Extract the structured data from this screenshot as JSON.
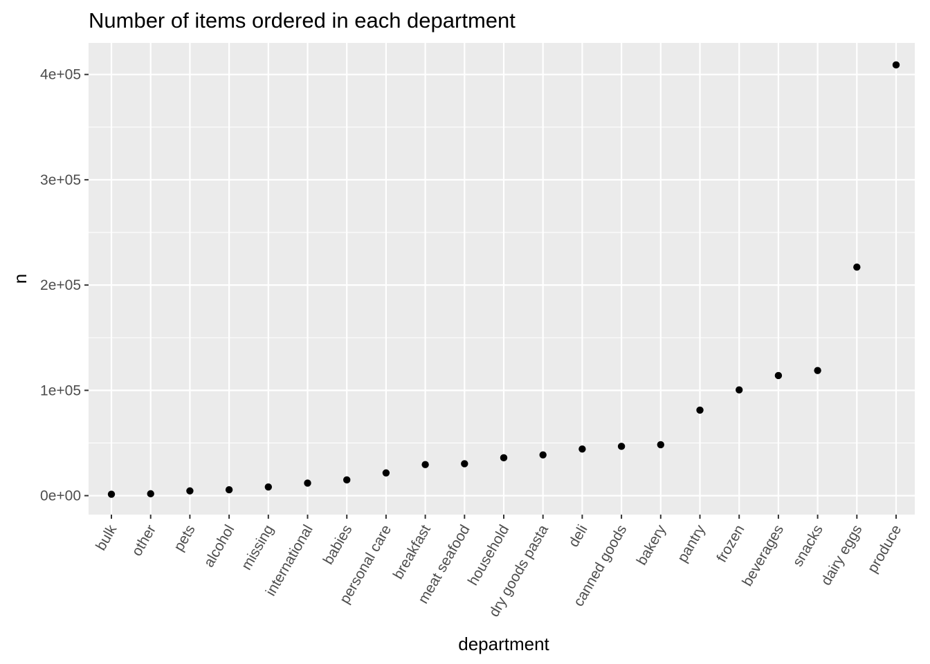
{
  "chart_data": {
    "type": "scatter",
    "title": "Number of items ordered in each department",
    "xlabel": "department",
    "ylabel": "n",
    "categories": [
      "bulk",
      "other",
      "pets",
      "alcohol",
      "missing",
      "international",
      "babies",
      "personal care",
      "breakfast",
      "meat seafood",
      "household",
      "dry goods pasta",
      "deli",
      "canned goods",
      "bakery",
      "pantry",
      "frozen",
      "beverages",
      "snacks",
      "dairy eggs",
      "produce"
    ],
    "values": [
      1360,
      1795,
      4497,
      5598,
      8251,
      11902,
      14941,
      21570,
      29500,
      30307,
      35986,
      38713,
      44291,
      46799,
      48394,
      81242,
      100426,
      114046,
      118862,
      217051,
      409087
    ],
    "y_ticks": [
      0,
      100000,
      200000,
      300000,
      400000
    ],
    "y_tick_labels": [
      "0e+00",
      "1e+05",
      "2e+05",
      "3e+05",
      "4e+05"
    ],
    "ylim": [
      -18000,
      430000
    ],
    "grid": true,
    "legend": "none",
    "colors": {
      "panel_bg": "#ebebeb",
      "grid": "#ffffff",
      "point": "#000000",
      "tick_text": "#4d4d4d",
      "axis_tick": "#333333"
    }
  }
}
